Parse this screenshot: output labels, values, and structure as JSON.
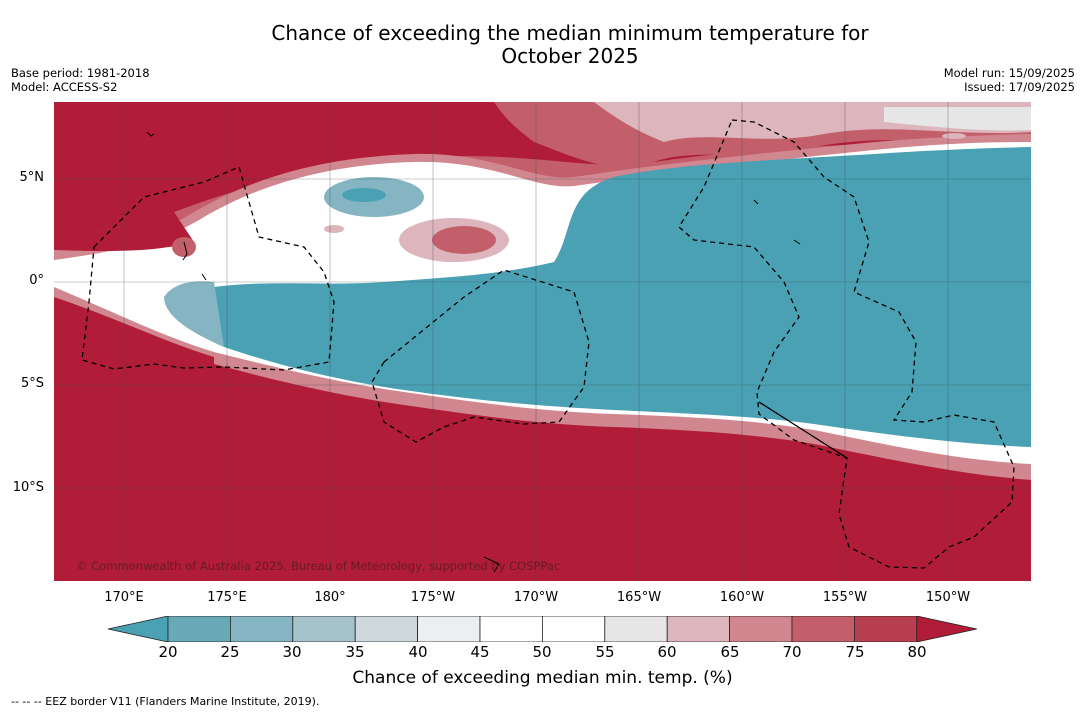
{
  "title": {
    "line1": "Chance of exceeding the median minimum temperature for",
    "line2": "October 2025"
  },
  "meta_left": {
    "base_period": "Base period: 1981-2018",
    "model": "Model: ACCESS-S2"
  },
  "meta_right": {
    "model_run": "Model run: 15/09/2025",
    "issued": "Issued: 17/09/2025"
  },
  "lat_labels": [
    "5°N",
    "0°",
    "5°S",
    "10°S"
  ],
  "lon_labels": [
    "170°E",
    "175°E",
    "180°",
    "175°W",
    "170°W",
    "165°W",
    "160°W",
    "155°W",
    "150°W"
  ],
  "copyright": "© Commonwealth of Australia 2025, Bureau of Meteorology, supported by COSPPac",
  "colorbar": {
    "ticks": [
      "20",
      "25",
      "30",
      "35",
      "40",
      "45",
      "50",
      "55",
      "60",
      "65",
      "70",
      "75",
      "80"
    ],
    "colors": [
      "#4aa1b3",
      "#68a9b8",
      "#85b5c3",
      "#a6c3cb",
      "#cfd9dd",
      "#eceef0",
      "#ffffff",
      "#ffffff",
      "#e6e6e6",
      "#ddb5bc",
      "#d1878f",
      "#c35f6b",
      "#b73f50",
      "#b11d38"
    ],
    "label": "Chance of exceeding median min. temp. (%)"
  },
  "footnote": "--  --  -- EEZ border V11 (Flanders Marine Institute, 2019)."
}
